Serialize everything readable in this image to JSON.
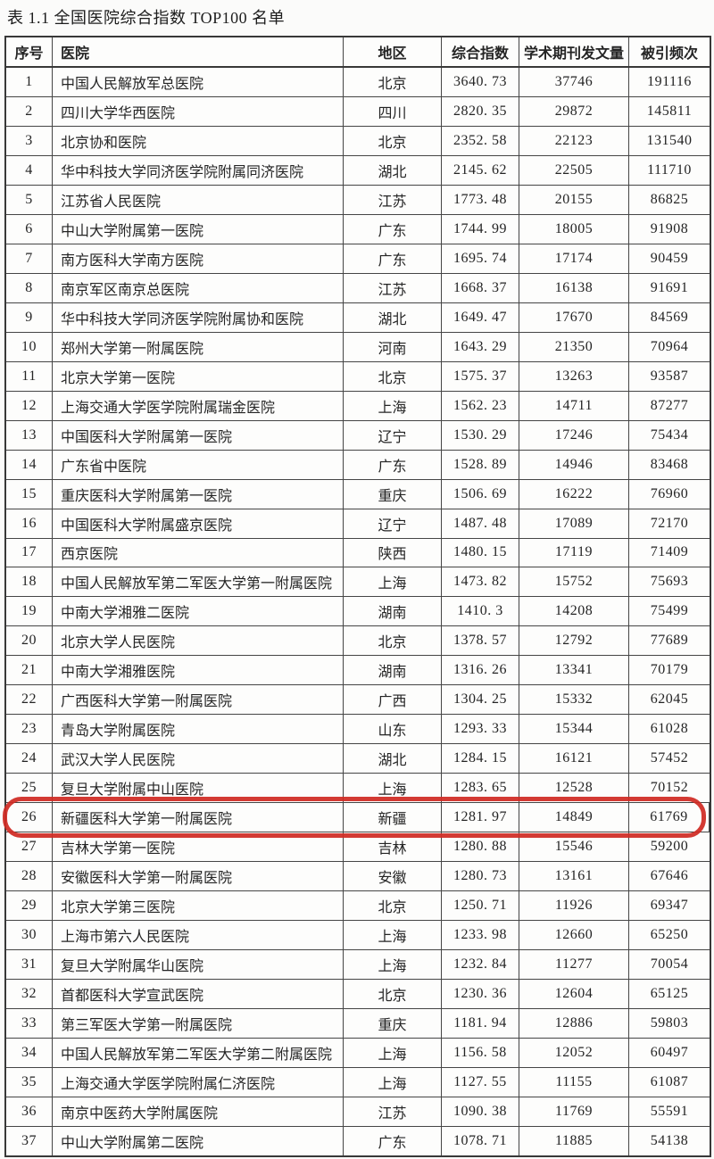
{
  "title": "表 1.1 全国医院综合指数 TOP100 名单",
  "colors": {
    "highlight_ring": "#d02b23",
    "table_border": "#3a3a3a",
    "text": "#242424",
    "background": "#fbfbfa"
  },
  "table": {
    "headers": [
      "序号",
      "医院",
      "地区",
      "综合指数",
      "学术期刊发文量",
      "被引频次"
    ],
    "highlighted_rank": "26",
    "rows": [
      {
        "rank": "1",
        "hospital": "中国人民解放军总医院",
        "region": "北京",
        "index": "3640. 73",
        "publications": "37746",
        "citations": "191116"
      },
      {
        "rank": "2",
        "hospital": "四川大学华西医院",
        "region": "四川",
        "index": "2820. 35",
        "publications": "29872",
        "citations": "145811"
      },
      {
        "rank": "3",
        "hospital": "北京协和医院",
        "region": "北京",
        "index": "2352. 58",
        "publications": "22123",
        "citations": "131540"
      },
      {
        "rank": "4",
        "hospital": "华中科技大学同济医学院附属同济医院",
        "region": "湖北",
        "index": "2145. 62",
        "publications": "22505",
        "citations": "111710"
      },
      {
        "rank": "5",
        "hospital": "江苏省人民医院",
        "region": "江苏",
        "index": "1773. 48",
        "publications": "20155",
        "citations": "86825"
      },
      {
        "rank": "6",
        "hospital": "中山大学附属第一医院",
        "region": "广东",
        "index": "1744. 99",
        "publications": "18005",
        "citations": "91908"
      },
      {
        "rank": "7",
        "hospital": "南方医科大学南方医院",
        "region": "广东",
        "index": "1695. 74",
        "publications": "17174",
        "citations": "90459"
      },
      {
        "rank": "8",
        "hospital": "南京军区南京总医院",
        "region": "江苏",
        "index": "1668. 37",
        "publications": "16138",
        "citations": "91691"
      },
      {
        "rank": "9",
        "hospital": "华中科技大学同济医学院附属协和医院",
        "region": "湖北",
        "index": "1649. 47",
        "publications": "17670",
        "citations": "84569"
      },
      {
        "rank": "10",
        "hospital": "郑州大学第一附属医院",
        "region": "河南",
        "index": "1643. 29",
        "publications": "21350",
        "citations": "70964"
      },
      {
        "rank": "11",
        "hospital": "北京大学第一医院",
        "region": "北京",
        "index": "1575. 37",
        "publications": "13263",
        "citations": "93587"
      },
      {
        "rank": "12",
        "hospital": "上海交通大学医学院附属瑞金医院",
        "region": "上海",
        "index": "1562. 23",
        "publications": "14711",
        "citations": "87277"
      },
      {
        "rank": "13",
        "hospital": "中国医科大学附属第一医院",
        "region": "辽宁",
        "index": "1530. 29",
        "publications": "17246",
        "citations": "75434"
      },
      {
        "rank": "14",
        "hospital": "广东省中医院",
        "region": "广东",
        "index": "1528. 89",
        "publications": "14946",
        "citations": "83468"
      },
      {
        "rank": "15",
        "hospital": "重庆医科大学附属第一医院",
        "region": "重庆",
        "index": "1506. 69",
        "publications": "16222",
        "citations": "76960"
      },
      {
        "rank": "16",
        "hospital": "中国医科大学附属盛京医院",
        "region": "辽宁",
        "index": "1487. 48",
        "publications": "17089",
        "citations": "72170"
      },
      {
        "rank": "17",
        "hospital": "西京医院",
        "region": "陕西",
        "index": "1480. 15",
        "publications": "17119",
        "citations": "71409"
      },
      {
        "rank": "18",
        "hospital": "中国人民解放军第二军医大学第一附属医院",
        "region": "上海",
        "index": "1473. 82",
        "publications": "15752",
        "citations": "75693"
      },
      {
        "rank": "19",
        "hospital": "中南大学湘雅二医院",
        "region": "湖南",
        "index": "1410. 3",
        "publications": "14208",
        "citations": "75499"
      },
      {
        "rank": "20",
        "hospital": "北京大学人民医院",
        "region": "北京",
        "index": "1378. 57",
        "publications": "12792",
        "citations": "77689"
      },
      {
        "rank": "21",
        "hospital": "中南大学湘雅医院",
        "region": "湖南",
        "index": "1316. 26",
        "publications": "13341",
        "citations": "70179"
      },
      {
        "rank": "22",
        "hospital": "广西医科大学第一附属医院",
        "region": "广西",
        "index": "1304. 25",
        "publications": "15332",
        "citations": "62045"
      },
      {
        "rank": "23",
        "hospital": "青岛大学附属医院",
        "region": "山东",
        "index": "1293. 33",
        "publications": "15344",
        "citations": "61028"
      },
      {
        "rank": "24",
        "hospital": "武汉大学人民医院",
        "region": "湖北",
        "index": "1284. 15",
        "publications": "16121",
        "citations": "57452"
      },
      {
        "rank": "25",
        "hospital": "复旦大学附属中山医院",
        "region": "上海",
        "index": "1283. 65",
        "publications": "12528",
        "citations": "70152"
      },
      {
        "rank": "26",
        "hospital": "新疆医科大学第一附属医院",
        "region": "新疆",
        "index": "1281. 97",
        "publications": "14849",
        "citations": "61769"
      },
      {
        "rank": "27",
        "hospital": "吉林大学第一医院",
        "region": "吉林",
        "index": "1280. 88",
        "publications": "15546",
        "citations": "59200"
      },
      {
        "rank": "28",
        "hospital": "安徽医科大学第一附属医院",
        "region": "安徽",
        "index": "1280. 73",
        "publications": "13161",
        "citations": "67646"
      },
      {
        "rank": "29",
        "hospital": "北京大学第三医院",
        "region": "北京",
        "index": "1250. 71",
        "publications": "11926",
        "citations": "69347"
      },
      {
        "rank": "30",
        "hospital": "上海市第六人民医院",
        "region": "上海",
        "index": "1233. 98",
        "publications": "12660",
        "citations": "65250"
      },
      {
        "rank": "31",
        "hospital": "复旦大学附属华山医院",
        "region": "上海",
        "index": "1232. 84",
        "publications": "11277",
        "citations": "70054"
      },
      {
        "rank": "32",
        "hospital": "首都医科大学宣武医院",
        "region": "北京",
        "index": "1230. 36",
        "publications": "12604",
        "citations": "65125"
      },
      {
        "rank": "33",
        "hospital": "第三军医大学第一附属医院",
        "region": "重庆",
        "index": "1181. 94",
        "publications": "12886",
        "citations": "59803"
      },
      {
        "rank": "34",
        "hospital": "中国人民解放军第二军医大学第二附属医院",
        "region": "上海",
        "index": "1156. 58",
        "publications": "12052",
        "citations": "60497"
      },
      {
        "rank": "35",
        "hospital": "上海交通大学医学院附属仁济医院",
        "region": "上海",
        "index": "1127. 55",
        "publications": "11155",
        "citations": "61087"
      },
      {
        "rank": "36",
        "hospital": "南京中医药大学附属医院",
        "region": "江苏",
        "index": "1090. 38",
        "publications": "11769",
        "citations": "55591"
      },
      {
        "rank": "37",
        "hospital": "中山大学附属第二医院",
        "region": "广东",
        "index": "1078. 71",
        "publications": "11885",
        "citations": "54138"
      }
    ]
  }
}
